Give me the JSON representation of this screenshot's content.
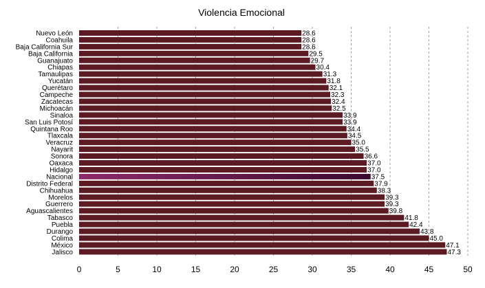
{
  "chart_data": {
    "type": "bar",
    "orientation": "horizontal",
    "title": "Violencia Emocional",
    "xlabel": "",
    "ylabel": "",
    "xlim": [
      0,
      50
    ],
    "x_ticks": [
      0,
      5,
      10,
      15,
      20,
      25,
      30,
      35,
      40,
      45,
      50
    ],
    "grid": "vertical dashed",
    "highlight_category": "Nacional",
    "colors": {
      "bar": "#5c1a22",
      "highlight_start": "#8e2a6a",
      "highlight_end": "#3a0a2e",
      "grid": "#a0a0a0"
    },
    "categories": [
      "Nuevo León",
      "Coahuila",
      "Baja California Sur",
      "Baja California",
      "Guanajuato",
      "Chiapas",
      "Tamaulipas",
      "Yucatán",
      "Querétaro",
      "Campeche",
      "Zacatecas",
      "Michoacán",
      "Sinaloa",
      "San Luis Potosí",
      "Quintana Roo",
      "Tlaxcala",
      "Veracruz",
      "Nayarit",
      "Sonora",
      "Oaxaca",
      "Hidalgo",
      "Nacional",
      "Distrito Federal",
      "Chihuahua",
      "Morelos",
      "Guerrero",
      "Aguascalientes",
      "Tabasco",
      "Puebla",
      "Durango",
      "Colima",
      "México",
      "Jalisco"
    ],
    "values": [
      28.6,
      28.6,
      28.6,
      29.5,
      29.7,
      30.4,
      31.3,
      31.8,
      32.1,
      32.3,
      32.4,
      32.5,
      33.9,
      33.9,
      34.4,
      34.5,
      35.0,
      35.5,
      36.6,
      37.0,
      37.0,
      37.5,
      37.9,
      38.3,
      39.3,
      39.3,
      39.8,
      41.8,
      42.4,
      43.8,
      45.0,
      47.1,
      47.3
    ],
    "value_labels": [
      "28.6",
      "28.6",
      "28.6",
      "29.5",
      "29.7",
      "30.4",
      "31.3",
      "31.8",
      "32.1",
      "32.3",
      "32.4",
      "32.5",
      "33.9",
      "33.9",
      "34.4",
      "34.5",
      "35.0",
      "35.5",
      "36.6",
      "37.0",
      "37.0",
      "37.5",
      "37.9",
      "38.3",
      "39.3",
      "39.3",
      "39.8",
      "41.8",
      "42.4",
      "43.8",
      "45.0",
      "47.1",
      "47.3"
    ]
  }
}
